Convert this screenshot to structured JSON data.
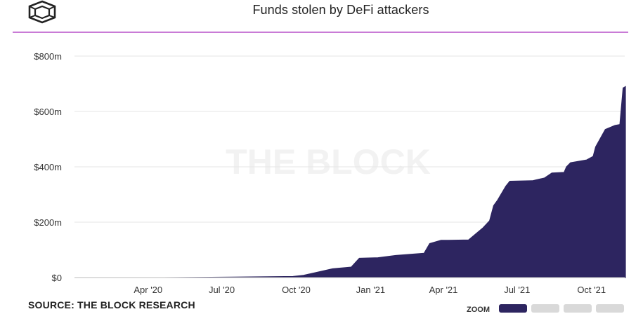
{
  "header": {
    "title": "Funds stolen by DeFi attackers",
    "logo_icon": "the-block-logo-icon"
  },
  "watermark": "THE BLOCK",
  "source": "SOURCE: THE BLOCK RESEARCH",
  "zoom": {
    "label": "ZOOM",
    "active_index": 0
  },
  "colors": {
    "area": "#2d2560",
    "rule": "#c97bd6",
    "grid": "#e6e6e6"
  },
  "chart_data": {
    "type": "area",
    "title": "Funds stolen by DeFi attackers",
    "xlabel": "",
    "ylabel": "",
    "x_range": [
      "2020-01-01",
      "2021-11-05"
    ],
    "ylim": [
      0,
      800
    ],
    "y_ticks": [
      0,
      200,
      400,
      600,
      800
    ],
    "y_tick_labels": [
      "$0",
      "$200m",
      "$400m",
      "$600m",
      "$800m"
    ],
    "x_tick_dates": [
      "2020-04-01",
      "2020-07-01",
      "2020-10-01",
      "2021-01-01",
      "2021-04-01",
      "2021-07-01",
      "2021-10-01"
    ],
    "x_tick_labels": [
      "Apr '20",
      "Jul '20",
      "Oct '20",
      "Jan '21",
      "Apr '21",
      "Jul '21",
      "Oct '21"
    ],
    "grid": true,
    "legend": "none",
    "series": [
      {
        "unit": "$m",
        "points": [
          [
            "2020-01-01",
            0
          ],
          [
            "2020-04-20",
            0
          ],
          [
            "2020-07-15",
            2
          ],
          [
            "2020-09-27",
            4
          ],
          [
            "2020-10-10",
            8
          ],
          [
            "2020-10-25",
            18
          ],
          [
            "2020-11-15",
            32
          ],
          [
            "2020-12-08",
            38
          ],
          [
            "2020-12-18",
            70
          ],
          [
            "2021-01-10",
            72
          ],
          [
            "2021-02-01",
            80
          ],
          [
            "2021-03-08",
            88
          ],
          [
            "2021-03-15",
            123
          ],
          [
            "2021-03-29",
            135
          ],
          [
            "2021-04-07",
            135
          ],
          [
            "2021-05-02",
            136
          ],
          [
            "2021-05-20",
            180
          ],
          [
            "2021-05-28",
            205
          ],
          [
            "2021-06-02",
            260
          ],
          [
            "2021-06-07",
            280
          ],
          [
            "2021-06-17",
            330
          ],
          [
            "2021-06-22",
            348
          ],
          [
            "2021-07-20",
            350
          ],
          [
            "2021-08-04",
            360
          ],
          [
            "2021-08-13",
            378
          ],
          [
            "2021-08-28",
            380
          ],
          [
            "2021-08-31",
            400
          ],
          [
            "2021-09-05",
            415
          ],
          [
            "2021-09-25",
            425
          ],
          [
            "2021-10-03",
            438
          ],
          [
            "2021-10-06",
            472
          ],
          [
            "2021-10-18",
            535
          ],
          [
            "2021-10-30",
            550
          ],
          [
            "2021-11-05",
            553
          ],
          [
            "2021-11-09",
            685
          ],
          [
            "2021-11-12",
            690
          ]
        ]
      }
    ]
  }
}
